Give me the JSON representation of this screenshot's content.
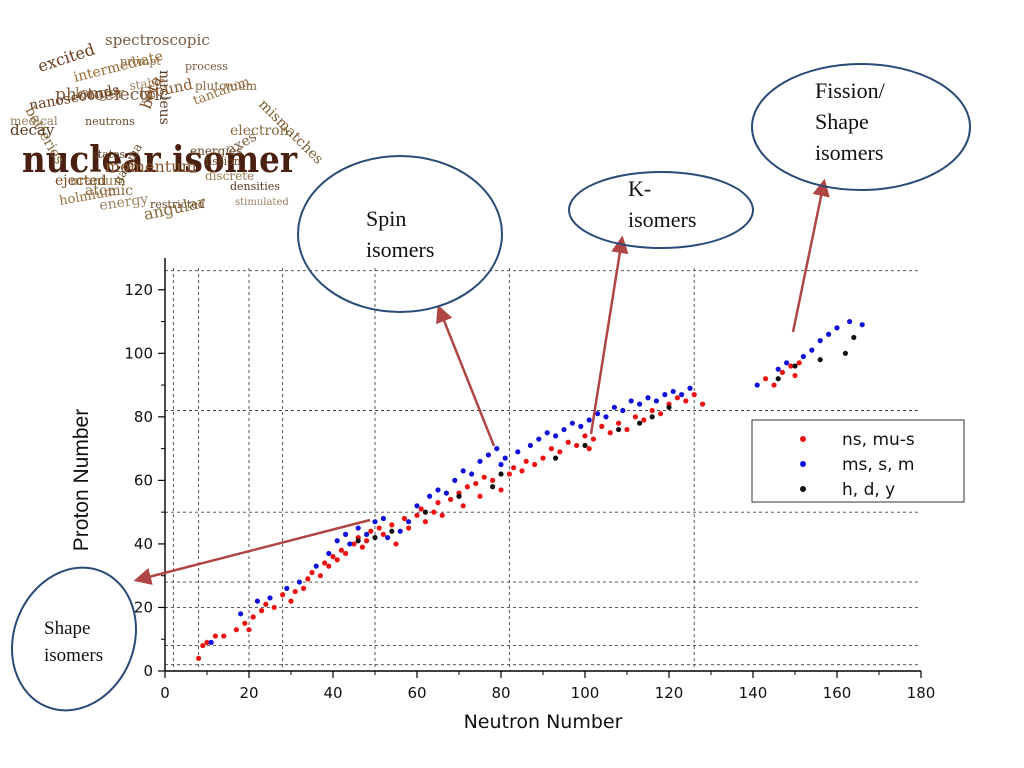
{
  "word_cloud": {
    "headline": "nuclear isomer",
    "words": [
      "spectroscopic",
      "excited",
      "intermediate",
      "photoelectric",
      "nucleus",
      "ground",
      "longer",
      "nanoseconds",
      "batteries",
      "medical",
      "decay",
      "stable",
      "beta",
      "plutonium",
      "tantalum",
      "neutrons",
      "electron",
      "mismatches",
      "states",
      "momentum",
      "energies",
      "axes",
      "uranium",
      "gamma",
      "atomic",
      "ejected",
      "holmium",
      "energy",
      "angular",
      "restricted",
      "densities",
      "stimulated",
      "process",
      "prompt",
      "fission",
      "discrete"
    ]
  },
  "callouts": {
    "fission": [
      "Fission/",
      "Shape",
      "isomers"
    ],
    "k": [
      "K-",
      "isomers"
    ],
    "spin": [
      "Spin",
      "isomers"
    ],
    "shape": [
      "Shape",
      "isomers"
    ]
  },
  "colors": {
    "ns": "#ee1111",
    "ms": "#1111dd",
    "h": "#111111",
    "arrow": "#b04545",
    "ellipse": "#2a4a78"
  },
  "chart_data": {
    "type": "scatter",
    "xlabel": "Neutron Number",
    "ylabel": "Proton Number",
    "xlim": [
      0,
      180
    ],
    "ylim": [
      0,
      130
    ],
    "xticks": [
      0,
      20,
      40,
      60,
      80,
      100,
      120,
      140,
      160,
      180
    ],
    "yticks": [
      0,
      20,
      40,
      60,
      80,
      100,
      120
    ],
    "magic_numbers": [
      2,
      8,
      20,
      28,
      50,
      82,
      126
    ],
    "legend_position": "right",
    "series": [
      {
        "name": "ns, mu-s",
        "color_key": "ns",
        "points": [
          [
            8,
            4
          ],
          [
            9,
            8
          ],
          [
            10,
            9
          ],
          [
            12,
            11
          ],
          [
            14,
            11
          ],
          [
            17,
            13
          ],
          [
            19,
            15
          ],
          [
            20,
            13
          ],
          [
            21,
            17
          ],
          [
            23,
            19
          ],
          [
            24,
            21
          ],
          [
            26,
            20
          ],
          [
            28,
            24
          ],
          [
            30,
            22
          ],
          [
            31,
            25
          ],
          [
            33,
            26
          ],
          [
            34,
            29
          ],
          [
            35,
            31
          ],
          [
            37,
            30
          ],
          [
            38,
            34
          ],
          [
            39,
            33
          ],
          [
            40,
            36
          ],
          [
            41,
            35
          ],
          [
            42,
            38
          ],
          [
            43,
            37
          ],
          [
            45,
            40
          ],
          [
            46,
            42
          ],
          [
            47,
            39
          ],
          [
            48,
            41
          ],
          [
            49,
            44
          ],
          [
            51,
            45
          ],
          [
            52,
            43
          ],
          [
            54,
            46
          ],
          [
            55,
            40
          ],
          [
            57,
            48
          ],
          [
            58,
            45
          ],
          [
            60,
            49
          ],
          [
            61,
            51
          ],
          [
            62,
            47
          ],
          [
            64,
            50
          ],
          [
            65,
            53
          ],
          [
            66,
            49
          ],
          [
            68,
            54
          ],
          [
            70,
            56
          ],
          [
            71,
            52
          ],
          [
            72,
            58
          ],
          [
            74,
            59
          ],
          [
            75,
            55
          ],
          [
            76,
            61
          ],
          [
            78,
            60
          ],
          [
            80,
            57
          ],
          [
            82,
            62
          ],
          [
            83,
            64
          ],
          [
            85,
            63
          ],
          [
            86,
            66
          ],
          [
            88,
            65
          ],
          [
            90,
            67
          ],
          [
            92,
            70
          ],
          [
            94,
            69
          ],
          [
            96,
            72
          ],
          [
            98,
            71
          ],
          [
            100,
            74
          ],
          [
            101,
            70
          ],
          [
            102,
            73
          ],
          [
            104,
            77
          ],
          [
            106,
            75
          ],
          [
            108,
            78
          ],
          [
            110,
            76
          ],
          [
            112,
            80
          ],
          [
            114,
            79
          ],
          [
            116,
            82
          ],
          [
            118,
            81
          ],
          [
            120,
            84
          ],
          [
            122,
            86
          ],
          [
            124,
            85
          ],
          [
            126,
            87
          ],
          [
            128,
            84
          ],
          [
            143,
            92
          ],
          [
            145,
            90
          ],
          [
            147,
            94
          ],
          [
            149,
            96
          ],
          [
            150,
            93
          ],
          [
            151,
            97
          ]
        ]
      },
      {
        "name": "ms, s, m",
        "color_key": "ms",
        "points": [
          [
            11,
            9
          ],
          [
            18,
            18
          ],
          [
            22,
            22
          ],
          [
            25,
            23
          ],
          [
            29,
            26
          ],
          [
            32,
            28
          ],
          [
            36,
            33
          ],
          [
            39,
            37
          ],
          [
            41,
            41
          ],
          [
            43,
            43
          ],
          [
            44,
            40
          ],
          [
            46,
            45
          ],
          [
            48,
            43
          ],
          [
            50,
            47
          ],
          [
            52,
            48
          ],
          [
            53,
            42
          ],
          [
            56,
            44
          ],
          [
            58,
            47
          ],
          [
            60,
            52
          ],
          [
            63,
            55
          ],
          [
            65,
            57
          ],
          [
            67,
            56
          ],
          [
            69,
            60
          ],
          [
            71,
            63
          ],
          [
            73,
            62
          ],
          [
            75,
            66
          ],
          [
            77,
            68
          ],
          [
            79,
            70
          ],
          [
            80,
            65
          ],
          [
            81,
            67
          ],
          [
            84,
            69
          ],
          [
            87,
            71
          ],
          [
            89,
            73
          ],
          [
            91,
            75
          ],
          [
            93,
            74
          ],
          [
            95,
            76
          ],
          [
            97,
            78
          ],
          [
            99,
            77
          ],
          [
            101,
            79
          ],
          [
            103,
            81
          ],
          [
            105,
            80
          ],
          [
            107,
            83
          ],
          [
            109,
            82
          ],
          [
            111,
            85
          ],
          [
            113,
            84
          ],
          [
            115,
            86
          ],
          [
            117,
            85
          ],
          [
            119,
            87
          ],
          [
            121,
            88
          ],
          [
            123,
            87
          ],
          [
            125,
            89
          ],
          [
            141,
            90
          ],
          [
            146,
            95
          ],
          [
            148,
            97
          ],
          [
            152,
            99
          ],
          [
            154,
            101
          ],
          [
            156,
            104
          ],
          [
            158,
            106
          ],
          [
            160,
            108
          ],
          [
            163,
            110
          ],
          [
            166,
            109
          ]
        ]
      },
      {
        "name": "h, d, y",
        "color_key": "h",
        "points": [
          [
            46,
            41
          ],
          [
            50,
            42
          ],
          [
            54,
            44
          ],
          [
            62,
            50
          ],
          [
            70,
            55
          ],
          [
            78,
            58
          ],
          [
            80,
            62
          ],
          [
            93,
            67
          ],
          [
            100,
            71
          ],
          [
            108,
            76
          ],
          [
            113,
            78
          ],
          [
            116,
            80
          ],
          [
            120,
            83
          ],
          [
            146,
            92
          ],
          [
            150,
            96
          ],
          [
            156,
            98
          ],
          [
            162,
            100
          ],
          [
            164,
            105
          ]
        ]
      }
    ]
  }
}
